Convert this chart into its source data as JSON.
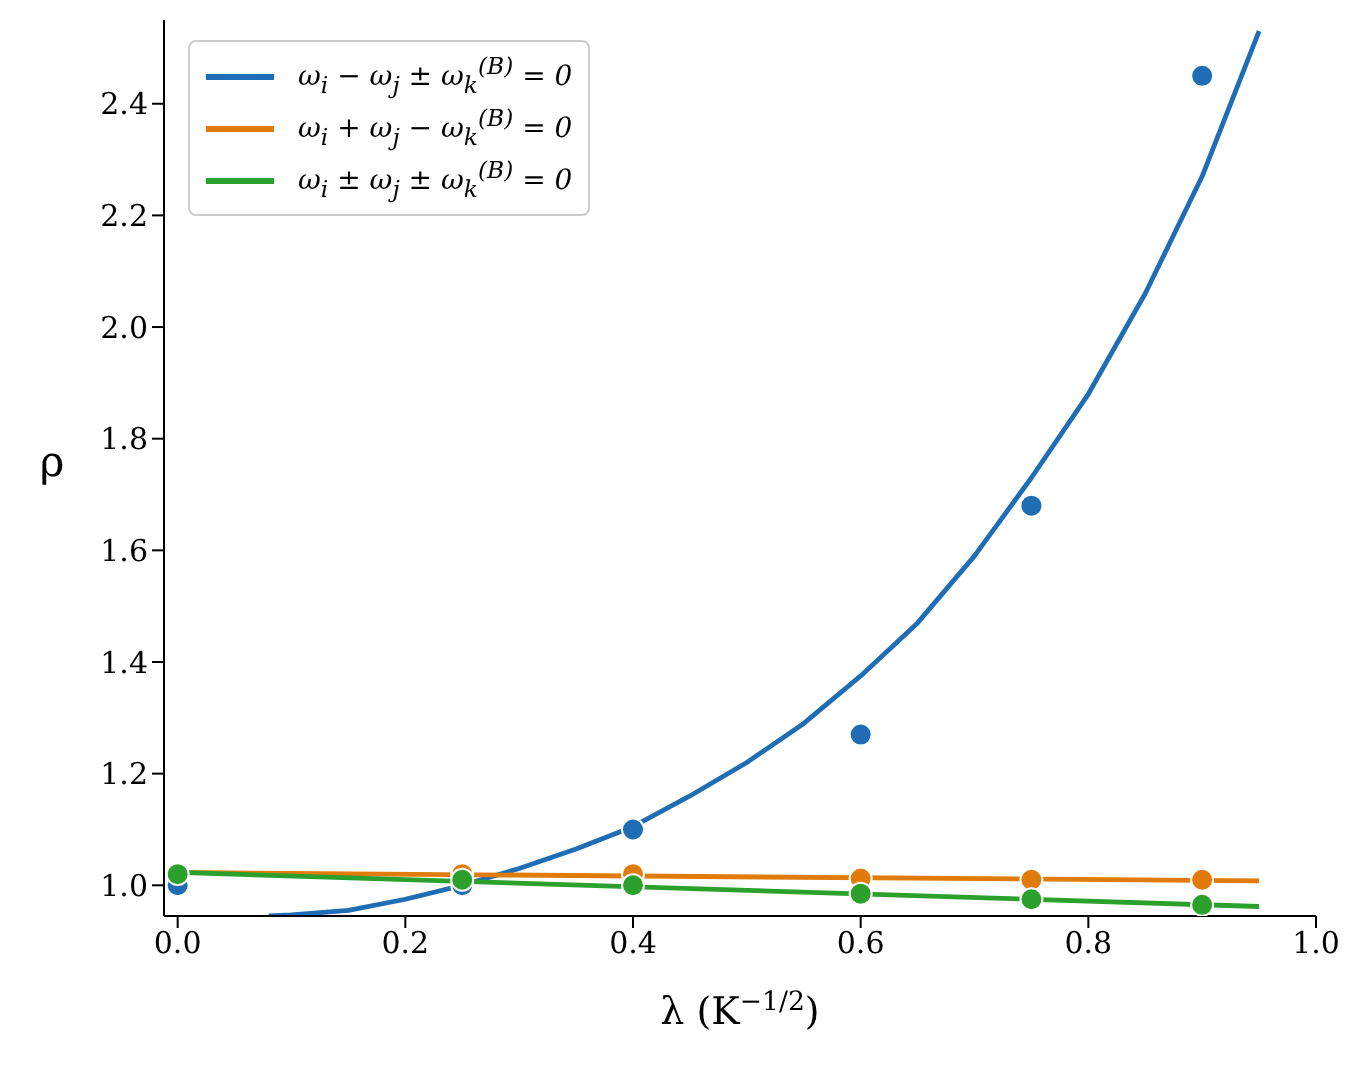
{
  "chart_data": {
    "type": "line",
    "xlabel": "λ (K$^{−1/2}$)",
    "ylabel": "ρ",
    "xlim": [
      -0.012,
      1.0
    ],
    "ylim": [
      0.945,
      2.55
    ],
    "xticks": [
      {
        "value": 0,
        "label": "0.0"
      },
      0.2,
      0.4,
      0.6,
      0.8,
      {
        "value": 1,
        "label": "1.0"
      }
    ],
    "yticks": [
      {
        "value": 1,
        "label": "1.0"
      },
      1.2,
      1.4,
      1.6,
      1.8,
      {
        "value": 2,
        "label": "2.0"
      },
      2.2,
      2.4
    ],
    "grid": false,
    "legend": "top left",
    "series": [
      {
        "name": "ω$_{i}$ − ω$_{j}$ ± ω$_{k}$$^{(B)}$ = 0",
        "color": "#1f6db4",
        "marker": "none",
        "x": [
          0.08,
          0.1,
          0.15,
          0.2,
          0.25,
          0.3,
          0.35,
          0.4,
          0.45,
          0.5,
          0.55,
          0.6,
          0.65,
          0.7,
          0.75,
          0.8,
          0.85,
          0.9,
          0.95
        ],
        "values": [
          0.945,
          0.947,
          0.955,
          0.975,
          1.0,
          1.03,
          1.065,
          1.105,
          1.16,
          1.22,
          1.29,
          1.375,
          1.47,
          1.59,
          1.73,
          1.88,
          2.06,
          2.27,
          2.53
        ]
      },
      {
        "name": "ω$_{i}$ + ω$_{j}$ − ω$_{k}$$^{(B)}$ = 0",
        "color": "#e07b0c",
        "marker": "none",
        "x": [
          0,
          0.95
        ],
        "values": [
          1.023,
          1.008
        ]
      },
      {
        "name": "ω$_{i}$ ± ω$_{j}$ ± ω$_{k}$$^{(B)}$ = 0",
        "color": "#2ca02c",
        "marker": "none",
        "x": [
          0,
          0.95
        ],
        "values": [
          1.023,
          0.962
        ]
      },
      {
        "type": "scatter",
        "color": "#1f6db4",
        "marker": "circle",
        "x": [
          0,
          0.25,
          0.4,
          0.6,
          0.75,
          0.9
        ],
        "values": [
          1.0,
          1.0,
          1.1,
          1.27,
          1.68,
          2.45
        ]
      },
      {
        "type": "scatter",
        "color": "#e07b0c",
        "marker": "circle",
        "x": [
          0.25,
          0.4,
          0.6,
          0.75,
          0.9
        ],
        "values": [
          1.02,
          1.02,
          1.012,
          1.01,
          1.01
        ]
      },
      {
        "type": "scatter",
        "color": "#2ca02c",
        "marker": "circle",
        "x": [
          0,
          0.25,
          0.4,
          0.6,
          0.75,
          0.9
        ],
        "values": [
          1.02,
          1.01,
          1.0,
          0.985,
          0.975,
          0.965
        ]
      }
    ]
  }
}
